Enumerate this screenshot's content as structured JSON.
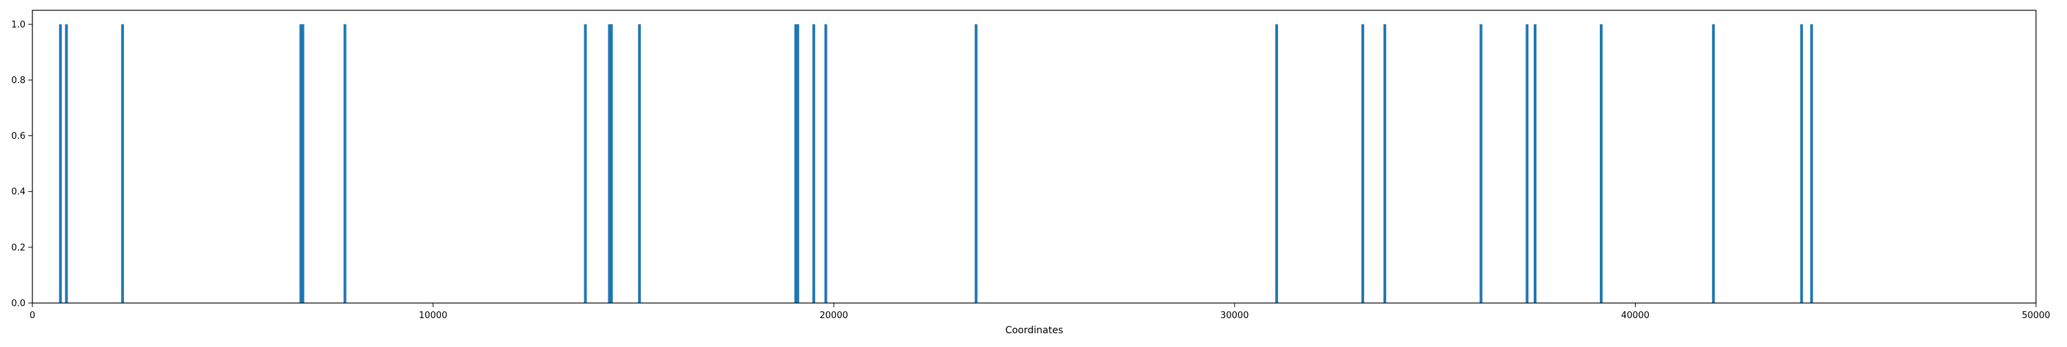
{
  "chart_data": {
    "type": "bar",
    "title": "",
    "xlabel": "Coordinates",
    "ylabel": "",
    "xlim": [
      0,
      50000
    ],
    "ylim": [
      0,
      1.05
    ],
    "xticks": [
      0,
      10000,
      20000,
      30000,
      40000,
      50000
    ],
    "xtick_labels": [
      "0",
      "10000",
      "20000",
      "30000",
      "40000",
      "50000"
    ],
    "yticks": [
      0.0,
      0.2,
      0.4,
      0.6,
      0.8,
      1.0
    ],
    "ytick_labels": [
      "0.0",
      "0.2",
      "0.4",
      "0.6",
      "0.8",
      "1.0"
    ],
    "grid": false,
    "legend": "none",
    "bar_color": "#1f77b4",
    "series": [
      {
        "x": [
          700,
          850,
          2250,
          6700,
          6750,
          7800,
          13800,
          14400,
          14450,
          15150,
          19050,
          19100,
          19500,
          19800,
          23550,
          31050,
          33200,
          33750,
          36150,
          37300,
          37500,
          39150,
          41950,
          44150,
          44400
        ],
        "values": [
          1,
          1,
          1,
          1,
          1,
          1,
          1,
          1,
          1,
          1,
          1,
          1,
          1,
          1,
          1,
          1,
          1,
          1,
          1,
          1,
          1,
          1,
          1,
          1,
          1
        ]
      }
    ]
  }
}
